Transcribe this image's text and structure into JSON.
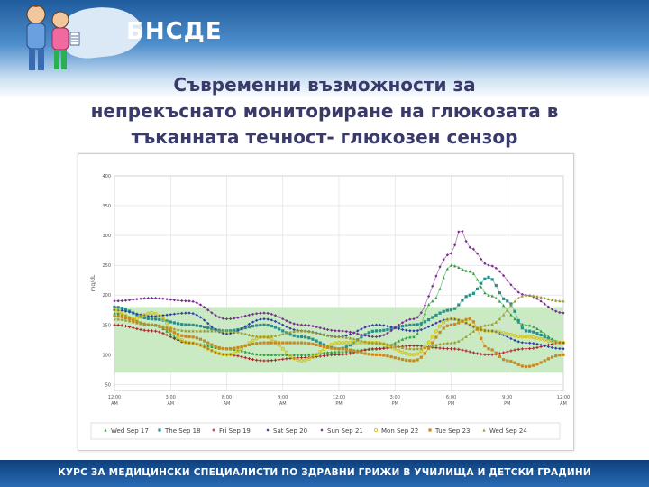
{
  "header": {
    "logo_text": "БНСДЕ",
    "title_lines": [
      "Съвременни възможности за",
      "непрекъснато мониториране на глюкозата в",
      "тъканната течност- глюкозен сензор"
    ]
  },
  "footer": {
    "text": "КУРС ЗА МЕДИЦИНСКИ СПЕЦИАЛИСТИ ПО ЗДРАВНИ ГРИЖИ В УЧИЛИЩА И ДЕТСКИ ГРАДИНИ"
  },
  "chart_data": {
    "type": "line",
    "ylabel": "mg/dL",
    "ylim": [
      40,
      400
    ],
    "yticks": [
      "400",
      "350",
      "300",
      "250",
      "200",
      "150",
      "100",
      "50"
    ],
    "ytick_values": [
      400,
      350,
      300,
      250,
      200,
      150,
      100,
      50
    ],
    "target_range": [
      70,
      180
    ],
    "grid": true,
    "legend_position": "bottom",
    "x_ticks": [
      {
        "time": "12:00",
        "ampm": "AM",
        "hour": 0
      },
      {
        "time": "3:00",
        "ampm": "AM",
        "hour": 3
      },
      {
        "time": "6:00",
        "ampm": "AM",
        "hour": 6
      },
      {
        "time": "9:00",
        "ampm": "AM",
        "hour": 9
      },
      {
        "time": "12:00",
        "ampm": "PM",
        "hour": 12
      },
      {
        "time": "3:00",
        "ampm": "PM",
        "hour": 15
      },
      {
        "time": "6:00",
        "ampm": "PM",
        "hour": 18
      },
      {
        "time": "9:00",
        "ampm": "PM",
        "hour": 21
      },
      {
        "time": "12:00",
        "ampm": "AM",
        "hour": 24
      }
    ],
    "series": [
      {
        "name": "Wed Sep 17",
        "color": "#2f9e3a",
        "marker": "triangle",
        "hours": [
          0,
          2,
          4,
          6,
          8,
          10,
          12,
          14,
          16,
          17,
          18,
          19,
          20,
          22,
          24
        ],
        "values": [
          170,
          150,
          120,
          110,
          100,
          100,
          105,
          110,
          130,
          190,
          250,
          240,
          200,
          150,
          120
        ]
      },
      {
        "name": "The Sep 18",
        "color": "#2a8f8a",
        "marker": "square",
        "hours": [
          0,
          2,
          4,
          6,
          8,
          10,
          12,
          14,
          16,
          18,
          19,
          20,
          21,
          22,
          24
        ],
        "values": [
          180,
          160,
          150,
          140,
          150,
          130,
          110,
          140,
          150,
          175,
          200,
          230,
          190,
          140,
          120
        ]
      },
      {
        "name": "Fri Sep 19",
        "color": "#b0202a",
        "marker": "plus",
        "hours": [
          0,
          2,
          4,
          6,
          8,
          10,
          12,
          14,
          16,
          18,
          20,
          22,
          24
        ],
        "values": [
          150,
          140,
          120,
          100,
          90,
          95,
          100,
          110,
          115,
          110,
          100,
          110,
          120
        ]
      },
      {
        "name": "Sat Sep 20",
        "color": "#2d3f9e",
        "marker": "diamond",
        "hours": [
          0,
          2,
          4,
          6,
          8,
          10,
          12,
          14,
          16,
          18,
          20,
          22,
          24
        ],
        "values": [
          175,
          165,
          170,
          135,
          160,
          140,
          130,
          150,
          140,
          160,
          140,
          120,
          110
        ]
      },
      {
        "name": "Sun Sep 21",
        "color": "#7a2a8f",
        "marker": "diamond",
        "hours": [
          0,
          2,
          4,
          6,
          8,
          10,
          12,
          14,
          16,
          18,
          18.5,
          19,
          20,
          22,
          24
        ],
        "values": [
          190,
          195,
          190,
          160,
          170,
          150,
          140,
          130,
          160,
          270,
          310,
          280,
          250,
          200,
          170
        ]
      },
      {
        "name": "Mon Sep 22",
        "color": "#d4c21a",
        "marker": "circle",
        "hours": [
          0,
          1,
          2,
          4,
          6,
          8,
          10,
          12,
          14,
          16,
          18,
          20,
          22,
          24
        ],
        "values": [
          175,
          160,
          170,
          120,
          100,
          130,
          90,
          120,
          120,
          100,
          160,
          140,
          130,
          120
        ]
      },
      {
        "name": "Tue Sep 23",
        "color": "#c88a20",
        "marker": "square",
        "hours": [
          0,
          2,
          4,
          6,
          8,
          10,
          12,
          14,
          16,
          18,
          19,
          20,
          21,
          22,
          24
        ],
        "values": [
          165,
          150,
          130,
          110,
          120,
          120,
          110,
          100,
          90,
          150,
          160,
          110,
          90,
          80,
          100
        ]
      },
      {
        "name": "Wed Sep 24",
        "color": "#9a9a30",
        "marker": "triangle",
        "hours": [
          0,
          2,
          4,
          6,
          8,
          10,
          12,
          14,
          16,
          18,
          20,
          22,
          24
        ],
        "values": [
          160,
          150,
          140,
          140,
          130,
          140,
          130,
          120,
          110,
          120,
          150,
          200,
          190
        ]
      }
    ]
  }
}
